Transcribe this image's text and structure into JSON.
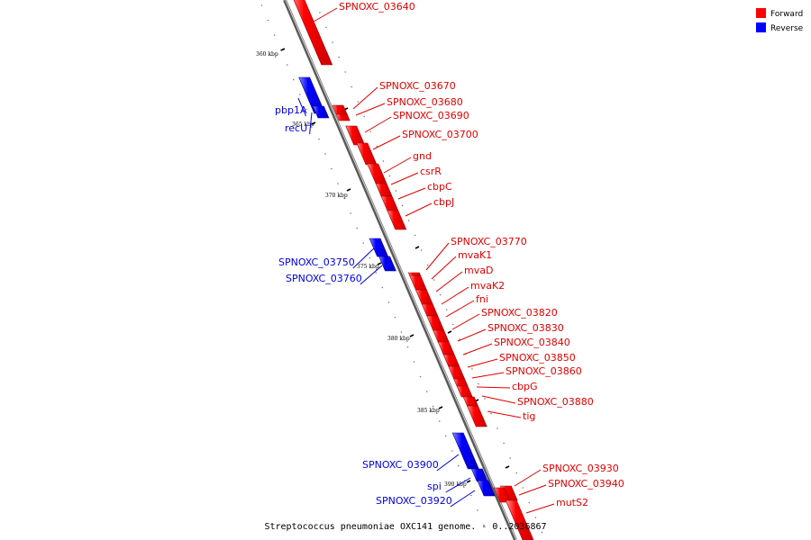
{
  "caption": "Streptococcus pneumoniae OXC141 genome. - 0..2036867",
  "legend": [
    {
      "label": "Forward",
      "color": "#ff0000"
    },
    {
      "label": "Reverse",
      "color": "#0000ff"
    }
  ],
  "colors": {
    "forward": "#ff0000",
    "reverse": "#0000ff",
    "forward_label": "#e00000",
    "reverse_label": "#0000e0"
  },
  "axis": {
    "unit": "kbp",
    "ticks": [
      {
        "label": "360 kbp"
      },
      {
        "label": "365 kbp"
      },
      {
        "label": "370 kbp"
      },
      {
        "label": "375 kbp"
      },
      {
        "label": "380 kbp"
      },
      {
        "label": "385 kbp"
      },
      {
        "label": "390 kbp"
      }
    ]
  },
  "genes": [
    {
      "name": "SPNOXC_03640",
      "strand": "forward"
    },
    {
      "name": "pbp1A",
      "strand": "reverse"
    },
    {
      "name": "recU",
      "strand": "reverse"
    },
    {
      "name": "SPNOXC_03670",
      "strand": "forward"
    },
    {
      "name": "SPNOXC_03680",
      "strand": "forward"
    },
    {
      "name": "SPNOXC_03690",
      "strand": "forward"
    },
    {
      "name": "SPNOXC_03700",
      "strand": "forward"
    },
    {
      "name": "gnd",
      "strand": "forward"
    },
    {
      "name": "csrR",
      "strand": "forward"
    },
    {
      "name": "cbpC",
      "strand": "forward"
    },
    {
      "name": "cbpJ",
      "strand": "forward"
    },
    {
      "name": "SPNOXC_03750",
      "strand": "reverse"
    },
    {
      "name": "SPNOXC_03760",
      "strand": "reverse"
    },
    {
      "name": "SPNOXC_03770",
      "strand": "forward"
    },
    {
      "name": "mvaK1",
      "strand": "forward"
    },
    {
      "name": "mvaD",
      "strand": "forward"
    },
    {
      "name": "mvaK2",
      "strand": "forward"
    },
    {
      "name": "fni",
      "strand": "forward"
    },
    {
      "name": "SPNOXC_03820",
      "strand": "forward"
    },
    {
      "name": "SPNOXC_03830",
      "strand": "forward"
    },
    {
      "name": "SPNOXC_03840",
      "strand": "forward"
    },
    {
      "name": "SPNOXC_03850",
      "strand": "forward"
    },
    {
      "name": "SPNOXC_03860",
      "strand": "forward"
    },
    {
      "name": "cbpG",
      "strand": "forward"
    },
    {
      "name": "SPNOXC_03880",
      "strand": "forward"
    },
    {
      "name": "tig",
      "strand": "forward"
    },
    {
      "name": "SPNOXC_03900",
      "strand": "reverse"
    },
    {
      "name": "spi",
      "strand": "reverse"
    },
    {
      "name": "SPNOXC_03920",
      "strand": "reverse"
    },
    {
      "name": "SPNOXC_03930",
      "strand": "forward"
    },
    {
      "name": "SPNOXC_03940",
      "strand": "forward"
    },
    {
      "name": "mutS2",
      "strand": "forward"
    }
  ]
}
